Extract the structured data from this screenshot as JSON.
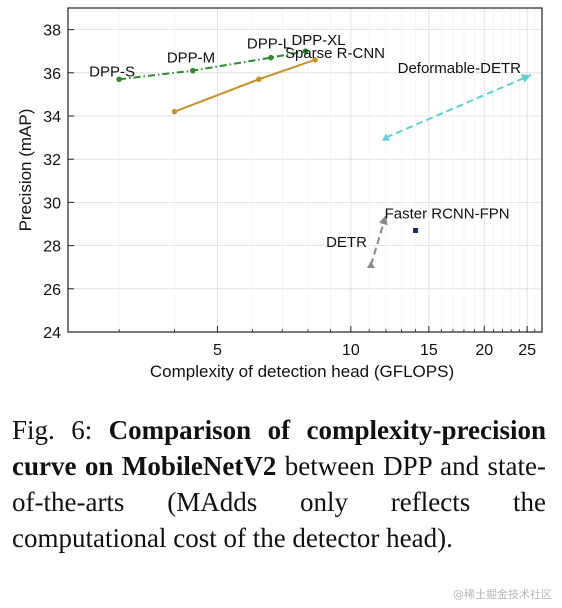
{
  "chart_data": {
    "type": "line",
    "xlabel": "Complexity of detection head (GFLOPS)",
    "ylabel": "Precision (mAP)",
    "xscale": "log",
    "xlim": [
      2.3,
      27
    ],
    "ylim": [
      24,
      39
    ],
    "xticks": [
      5,
      10,
      15,
      20,
      25
    ],
    "yticks": [
      24,
      26,
      28,
      30,
      32,
      34,
      36,
      38
    ],
    "grid": true,
    "series": [
      {
        "name": "DPP",
        "color": "#2e8b2e",
        "style": "dashdot",
        "marker": "dot",
        "x": [
          3.0,
          4.4,
          6.6,
          7.9
        ],
        "y": [
          35.7,
          36.1,
          36.7,
          37.0
        ],
        "point_labels": [
          "DPP-S",
          "DPP-M",
          "DPP-L",
          "DPP-XL"
        ]
      },
      {
        "name": "Sparse R-CNN",
        "color": "#c8922b",
        "style": "solid",
        "marker": "dot",
        "x": [
          4.0,
          6.2,
          8.3
        ],
        "y": [
          34.2,
          35.7,
          36.6
        ]
      },
      {
        "name": "Deformable-DETR",
        "color": "#5fd0d6",
        "style": "dashed",
        "marker": "triangle",
        "x": [
          12.0,
          25.5
        ],
        "y": [
          33.0,
          35.9
        ]
      },
      {
        "name": "DETR",
        "color": "#8a8a8a",
        "style": "dashed",
        "marker": "triangle",
        "x": [
          11.1,
          12.0
        ],
        "y": [
          27.1,
          29.4
        ]
      },
      {
        "name": "Faster RCNN-FPN",
        "color": "#1a237e",
        "style": "none",
        "marker": "square",
        "x": [
          14.0
        ],
        "y": [
          28.7
        ]
      }
    ]
  },
  "caption": {
    "prefix": "Fig. 6: ",
    "title": "Comparison of complexity-precision curve on MobileNetV2",
    "body": " between DPP and state-of-the-arts (MAdds only reflects the computational cost of the detector head)."
  },
  "watermark": "@稀土掘金技术社区"
}
